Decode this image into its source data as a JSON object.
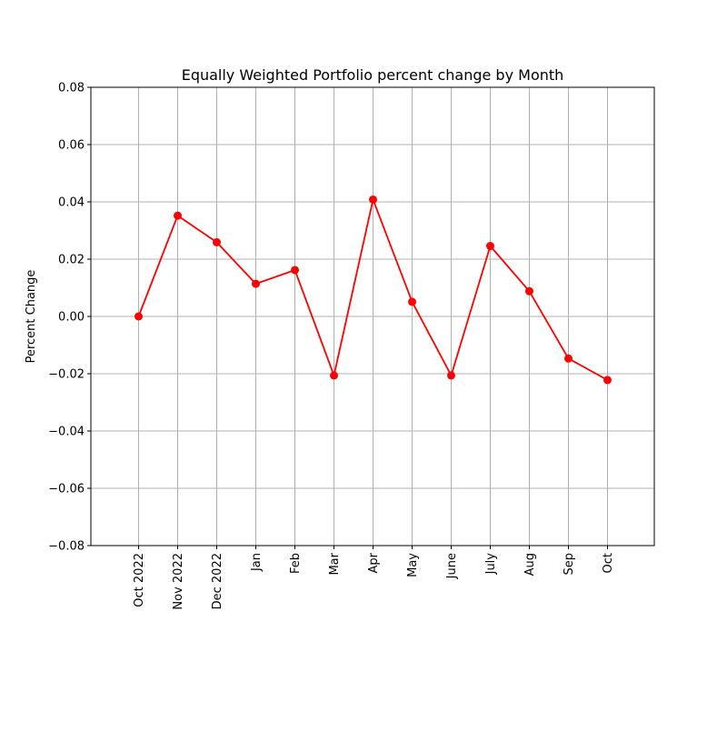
{
  "chart_data": {
    "type": "line",
    "title": "Equally Weighted Portfolio percent change by Month",
    "xlabel": "",
    "ylabel": "Percent Change",
    "categories": [
      "Oct 2022",
      "Nov 2022",
      "Dec 2022",
      "Jan",
      "Feb",
      "Mar",
      "Apr",
      "May",
      "June",
      "July",
      "Aug",
      "Sep",
      "Oct"
    ],
    "series": [
      {
        "values": [
          0.0,
          0.0352,
          0.0259,
          0.0114,
          0.0162,
          -0.0206,
          0.0408,
          0.0051,
          -0.0206,
          0.0246,
          0.0088,
          -0.0147,
          -0.0222
        ],
        "color": "#ff0000",
        "marker": "circle"
      }
    ],
    "ylim": [
      -0.08,
      0.08
    ],
    "yticks": [
      "−0.08",
      "−0.06",
      "−0.04",
      "−0.02",
      "0.00",
      "0.02",
      "0.04",
      "0.06",
      "0.08"
    ],
    "ytick_values": [
      -0.08,
      -0.06,
      -0.04,
      -0.02,
      0.0,
      0.02,
      0.04,
      0.06,
      0.08
    ],
    "grid": true,
    "grid_color": "#b0b0b0",
    "x_tick_rotation": "vertical"
  }
}
